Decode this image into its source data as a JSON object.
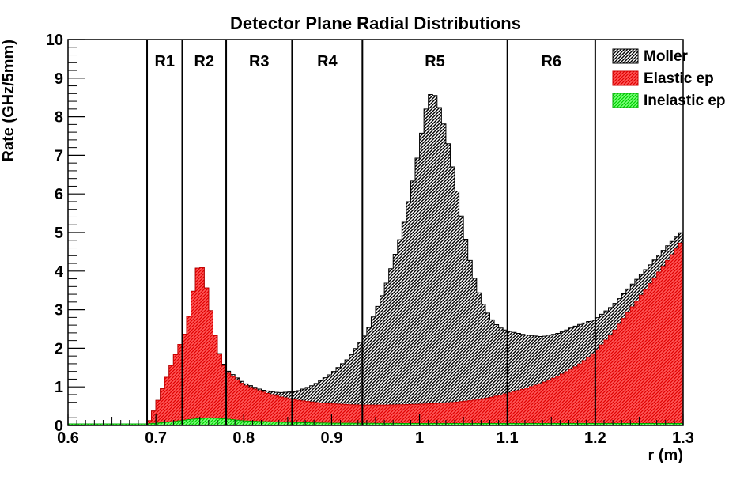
{
  "chart_data": {
    "type": "area",
    "title": "Detector Plane Radial Distributions",
    "xlabel": "r (m)",
    "ylabel": "Rate (GHz/5mm)",
    "xlim": [
      0.6,
      1.3
    ],
    "ylim": [
      0,
      10
    ],
    "x_ticks": [
      "0.6",
      "0.7",
      "0.8",
      "0.9",
      "1",
      "1.1",
      "1.2",
      "1.3"
    ],
    "y_ticks": [
      "0",
      "1",
      "2",
      "3",
      "4",
      "5",
      "6",
      "7",
      "8",
      "9",
      "10"
    ],
    "grid": false,
    "legend_position": "top-right",
    "regions": [
      {
        "label": "R1",
        "start": 0.69,
        "end": 0.73
      },
      {
        "label": "R2",
        "start": 0.73,
        "end": 0.78
      },
      {
        "label": "R3",
        "start": 0.78,
        "end": 0.855
      },
      {
        "label": "R4",
        "start": 0.855,
        "end": 0.935
      },
      {
        "label": "R5",
        "start": 0.935,
        "end": 1.1
      },
      {
        "label": "R6",
        "start": 1.1,
        "end": 1.2
      }
    ],
    "series": [
      {
        "name": "Moller",
        "color": "#000000",
        "stack_total": true,
        "points": [
          [
            0.6,
            0
          ],
          [
            0.69,
            0
          ],
          [
            0.7,
            0.5
          ],
          [
            0.72,
            1.7
          ],
          [
            0.735,
            2.5
          ],
          [
            0.745,
            3.8
          ],
          [
            0.75,
            4.35
          ],
          [
            0.76,
            3.3
          ],
          [
            0.77,
            2.0
          ],
          [
            0.78,
            1.45
          ],
          [
            0.8,
            1.1
          ],
          [
            0.82,
            0.92
          ],
          [
            0.84,
            0.85
          ],
          [
            0.86,
            0.88
          ],
          [
            0.88,
            1.05
          ],
          [
            0.9,
            1.35
          ],
          [
            0.92,
            1.75
          ],
          [
            0.94,
            2.4
          ],
          [
            0.96,
            3.5
          ],
          [
            0.98,
            5.0
          ],
          [
            0.995,
            6.6
          ],
          [
            1.005,
            7.9
          ],
          [
            1.01,
            8.5
          ],
          [
            1.015,
            8.65
          ],
          [
            1.02,
            8.45
          ],
          [
            1.03,
            7.6
          ],
          [
            1.04,
            6.4
          ],
          [
            1.05,
            5.1
          ],
          [
            1.06,
            4.0
          ],
          [
            1.07,
            3.25
          ],
          [
            1.08,
            2.8
          ],
          [
            1.09,
            2.55
          ],
          [
            1.1,
            2.45
          ],
          [
            1.12,
            2.35
          ],
          [
            1.14,
            2.3
          ],
          [
            1.16,
            2.4
          ],
          [
            1.18,
            2.6
          ],
          [
            1.2,
            2.75
          ],
          [
            1.22,
            3.1
          ],
          [
            1.24,
            3.6
          ],
          [
            1.26,
            4.1
          ],
          [
            1.28,
            4.6
          ],
          [
            1.3,
            5.05
          ]
        ]
      },
      {
        "name": "Elastic ep",
        "color": "#ff0000",
        "points": [
          [
            0.6,
            0
          ],
          [
            0.69,
            0
          ],
          [
            0.7,
            0.5
          ],
          [
            0.72,
            1.7
          ],
          [
            0.735,
            2.5
          ],
          [
            0.745,
            3.8
          ],
          [
            0.75,
            4.35
          ],
          [
            0.76,
            3.3
          ],
          [
            0.77,
            2.0
          ],
          [
            0.78,
            1.4
          ],
          [
            0.8,
            1.05
          ],
          [
            0.82,
            0.88
          ],
          [
            0.84,
            0.75
          ],
          [
            0.86,
            0.66
          ],
          [
            0.88,
            0.6
          ],
          [
            0.9,
            0.56
          ],
          [
            0.92,
            0.54
          ],
          [
            0.94,
            0.53
          ],
          [
            0.96,
            0.53
          ],
          [
            0.98,
            0.54
          ],
          [
            1.0,
            0.55
          ],
          [
            1.02,
            0.57
          ],
          [
            1.04,
            0.6
          ],
          [
            1.06,
            0.65
          ],
          [
            1.08,
            0.72
          ],
          [
            1.1,
            0.83
          ],
          [
            1.12,
            0.95
          ],
          [
            1.14,
            1.1
          ],
          [
            1.16,
            1.3
          ],
          [
            1.18,
            1.55
          ],
          [
            1.2,
            1.9
          ],
          [
            1.22,
            2.4
          ],
          [
            1.24,
            3.0
          ],
          [
            1.26,
            3.6
          ],
          [
            1.28,
            4.2
          ],
          [
            1.3,
            4.8
          ]
        ]
      },
      {
        "name": "Inelastic ep",
        "color": "#00ff00",
        "points": [
          [
            0.6,
            0.04
          ],
          [
            0.69,
            0.04
          ],
          [
            0.72,
            0.1
          ],
          [
            0.74,
            0.16
          ],
          [
            0.76,
            0.2
          ],
          [
            0.78,
            0.17
          ],
          [
            0.8,
            0.12
          ],
          [
            0.85,
            0.08
          ],
          [
            0.9,
            0.06
          ],
          [
            1.0,
            0.05
          ],
          [
            1.1,
            0.05
          ],
          [
            1.2,
            0.05
          ],
          [
            1.3,
            0.05
          ]
        ]
      }
    ]
  }
}
